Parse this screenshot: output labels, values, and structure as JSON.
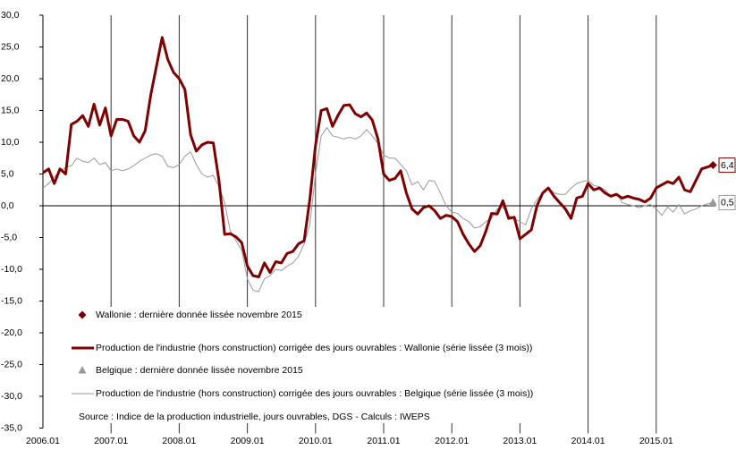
{
  "chart_data": {
    "type": "line",
    "categories": [
      "2006.01",
      null,
      null,
      null,
      null,
      null,
      null,
      null,
      null,
      null,
      null,
      null,
      "2007.01",
      null,
      null,
      null,
      null,
      null,
      null,
      null,
      null,
      null,
      null,
      null,
      "2008.01",
      null,
      null,
      null,
      null,
      null,
      null,
      null,
      null,
      null,
      null,
      null,
      "2009.01",
      null,
      null,
      null,
      null,
      null,
      null,
      null,
      null,
      null,
      null,
      null,
      "2010.01",
      null,
      null,
      null,
      null,
      null,
      null,
      null,
      null,
      null,
      null,
      null,
      "2011.01",
      null,
      null,
      null,
      null,
      null,
      null,
      null,
      null,
      null,
      null,
      null,
      "2012.01",
      null,
      null,
      null,
      null,
      null,
      null,
      null,
      null,
      null,
      null,
      null,
      "2013.01",
      null,
      null,
      null,
      null,
      null,
      null,
      null,
      null,
      null,
      null,
      null,
      "2014.01",
      null,
      null,
      null,
      null,
      null,
      null,
      null,
      null,
      null,
      null,
      null,
      "2015.01",
      null,
      null,
      null,
      null,
      null,
      null,
      null,
      null,
      null,
      null
    ],
    "series": [
      {
        "name": "Wallonie : dernière donnée lissée novembre 2015",
        "color": "#7f0000",
        "marker": "diamond",
        "values": [
          null,
          null,
          null,
          null,
          null,
          null,
          null,
          null,
          null,
          null,
          null,
          null,
          null,
          null,
          null,
          null,
          null,
          null,
          null,
          null,
          null,
          null,
          null,
          null,
          null,
          null,
          null,
          null,
          null,
          null,
          null,
          null,
          null,
          null,
          null,
          null,
          null,
          null,
          null,
          null,
          null,
          null,
          null,
          null,
          null,
          null,
          null,
          null,
          null,
          null,
          null,
          null,
          null,
          null,
          null,
          null,
          null,
          null,
          null,
          null,
          null,
          null,
          null,
          null,
          null,
          null,
          null,
          null,
          null,
          null,
          null,
          null,
          null,
          null,
          null,
          null,
          null,
          null,
          null,
          null,
          null,
          null,
          null,
          null,
          null,
          null,
          null,
          null,
          null,
          null,
          null,
          null,
          null,
          null,
          null,
          null,
          null,
          null,
          null,
          null,
          null,
          null,
          null,
          null,
          null,
          null,
          null,
          null,
          null,
          null,
          null,
          null,
          null,
          null,
          null,
          null,
          null,
          null,
          6.4
        ],
        "value_labels": [
          null,
          null,
          null,
          null,
          null,
          null,
          null,
          null,
          null,
          null,
          null,
          null,
          null,
          null,
          null,
          null,
          null,
          null,
          null,
          null,
          null,
          null,
          null,
          null,
          null,
          null,
          null,
          null,
          null,
          null,
          null,
          null,
          null,
          null,
          null,
          null,
          null,
          null,
          null,
          null,
          null,
          null,
          null,
          null,
          null,
          null,
          null,
          null,
          null,
          null,
          null,
          null,
          null,
          null,
          null,
          null,
          null,
          null,
          null,
          null,
          null,
          null,
          null,
          null,
          null,
          null,
          null,
          null,
          null,
          null,
          null,
          null,
          null,
          null,
          null,
          null,
          null,
          null,
          null,
          null,
          null,
          null,
          null,
          null,
          null,
          null,
          null,
          null,
          null,
          null,
          null,
          null,
          null,
          null,
          null,
          null,
          null,
          null,
          null,
          null,
          null,
          null,
          null,
          null,
          null,
          null,
          null,
          null,
          null,
          null,
          null,
          null,
          null,
          null,
          null,
          null,
          null,
          null,
          "6,4"
        ]
      },
      {
        "name": "Production de l'industrie (hors construction) corrigée des jours ouvrables : Wallonie (série lissée (3 mois))",
        "color": "#7f0000",
        "width": 3,
        "values": [
          5.2,
          5.8,
          3.5,
          5.8,
          5.0,
          12.8,
          13.3,
          14.2,
          12.5,
          16.0,
          12.7,
          15.4,
          11.0,
          13.6,
          13.6,
          13.3,
          11.0,
          10.0,
          11.8,
          17.5,
          22.0,
          26.5,
          23.0,
          21.0,
          20.0,
          18.3,
          11.2,
          8.6,
          9.6,
          10.0,
          9.9,
          4.0,
          -4.5,
          -4.4,
          -4.9,
          -5.8,
          -9.5,
          -11.0,
          -11.2,
          -9.0,
          -10.5,
          -8.8,
          -9.0,
          -7.5,
          -7.2,
          -6.0,
          -5.5,
          1.0,
          9.5,
          15.0,
          15.3,
          12.5,
          14.3,
          15.8,
          15.9,
          14.5,
          14.0,
          14.6,
          13.5,
          10.5,
          5.0,
          4.0,
          4.3,
          5.5,
          2.0,
          -0.5,
          -1.3,
          -0.3,
          0.0,
          -0.8,
          -2.0,
          -1.5,
          -1.7,
          -2.5,
          -4.5,
          -6.0,
          -7.2,
          -6.3,
          -4.0,
          -1.2,
          -1.3,
          0.8,
          -2.0,
          -1.8,
          -5.2,
          -4.5,
          -3.8,
          0.0,
          2.0,
          2.8,
          1.5,
          0.5,
          -0.5,
          -2.0,
          1.2,
          1.5,
          3.5,
          2.5,
          2.8,
          2.0,
          1.5,
          1.8,
          1.2,
          1.5,
          1.2,
          1.0,
          0.6,
          1.2,
          2.8,
          3.3,
          3.8,
          3.5,
          4.5,
          2.5,
          2.2,
          4.0,
          5.8,
          6.1,
          6.4
        ]
      },
      {
        "name": "Belgique : dernière donnée lissée novembre 2015",
        "color": "#999999",
        "marker": "triangle",
        "values": [
          null,
          null,
          null,
          null,
          null,
          null,
          null,
          null,
          null,
          null,
          null,
          null,
          null,
          null,
          null,
          null,
          null,
          null,
          null,
          null,
          null,
          null,
          null,
          null,
          null,
          null,
          null,
          null,
          null,
          null,
          null,
          null,
          null,
          null,
          null,
          null,
          null,
          null,
          null,
          null,
          null,
          null,
          null,
          null,
          null,
          null,
          null,
          null,
          null,
          null,
          null,
          null,
          null,
          null,
          null,
          null,
          null,
          null,
          null,
          null,
          null,
          null,
          null,
          null,
          null,
          null,
          null,
          null,
          null,
          null,
          null,
          null,
          null,
          null,
          null,
          null,
          null,
          null,
          null,
          null,
          null,
          null,
          null,
          null,
          null,
          null,
          null,
          null,
          null,
          null,
          null,
          null,
          null,
          null,
          null,
          null,
          null,
          null,
          null,
          null,
          null,
          null,
          null,
          null,
          null,
          null,
          null,
          null,
          null,
          null,
          null,
          null,
          null,
          null,
          null,
          null,
          null,
          null,
          0.5
        ],
        "value_labels": [
          null,
          null,
          null,
          null,
          null,
          null,
          null,
          null,
          null,
          null,
          null,
          null,
          null,
          null,
          null,
          null,
          null,
          null,
          null,
          null,
          null,
          null,
          null,
          null,
          null,
          null,
          null,
          null,
          null,
          null,
          null,
          null,
          null,
          null,
          null,
          null,
          null,
          null,
          null,
          null,
          null,
          null,
          null,
          null,
          null,
          null,
          null,
          null,
          null,
          null,
          null,
          null,
          null,
          null,
          null,
          null,
          null,
          null,
          null,
          null,
          null,
          null,
          null,
          null,
          null,
          null,
          null,
          null,
          null,
          null,
          null,
          null,
          null,
          null,
          null,
          null,
          null,
          null,
          null,
          null,
          null,
          null,
          null,
          null,
          null,
          null,
          null,
          null,
          null,
          null,
          null,
          null,
          null,
          null,
          null,
          null,
          null,
          null,
          null,
          null,
          null,
          null,
          null,
          null,
          null,
          null,
          null,
          null,
          null,
          null,
          null,
          null,
          null,
          null,
          null,
          null,
          null,
          null,
          "0,5"
        ]
      },
      {
        "name": "Production de l'industrie (hors construction) corrigée des jours ouvrables : Belgique (série lissée (3 mois))",
        "color": "#999999",
        "width": 1,
        "values": [
          2.8,
          3.5,
          4.5,
          5.5,
          6.0,
          6.3,
          7.5,
          7.0,
          6.8,
          7.5,
          6.5,
          6.8,
          5.5,
          5.8,
          5.5,
          5.8,
          6.3,
          7.0,
          7.5,
          8.0,
          8.2,
          7.8,
          6.2,
          6.0,
          6.5,
          7.8,
          8.5,
          6.5,
          5.0,
          4.5,
          4.8,
          3.0,
          0.5,
          -4.0,
          -5.5,
          -7.0,
          -11.5,
          -13.3,
          -13.5,
          -11.5,
          -11.0,
          -10.0,
          -10.2,
          -9.5,
          -9.0,
          -8.0,
          -6.0,
          -3.0,
          5.0,
          11.0,
          12.3,
          11.0,
          10.8,
          10.5,
          10.8,
          10.5,
          11.0,
          12.0,
          11.0,
          9.8,
          8.0,
          7.5,
          7.5,
          6.5,
          5.5,
          3.3,
          3.8,
          2.5,
          4.0,
          3.8,
          2.0,
          0.0,
          -1.0,
          -1.2,
          -2.0,
          -2.5,
          -3.5,
          -3.3,
          -2.5,
          -2.0,
          -0.5,
          -0.2,
          -1.5,
          -2.0,
          -2.5,
          -3.0,
          -0.5,
          1.0,
          2.0,
          2.8,
          2.0,
          1.8,
          1.8,
          2.8,
          3.5,
          3.8,
          4.0,
          3.2,
          3.0,
          2.5,
          1.5,
          2.0,
          0.5,
          0.2,
          0.0,
          -0.3,
          0.0,
          0.2,
          -0.5,
          -1.5,
          -0.2,
          -1.0,
          0.2,
          -1.3,
          -0.8,
          -0.5,
          0.0,
          0.3,
          0.5
        ]
      }
    ],
    "ylim": [
      -35,
      30
    ],
    "yticks": [
      {
        "value": 30,
        "label": "30,0"
      },
      {
        "value": 25,
        "label": "25,0"
      },
      {
        "value": 20,
        "label": "20,0"
      },
      {
        "value": 15,
        "label": "15,0"
      },
      {
        "value": 10,
        "label": "10,0"
      },
      {
        "value": 5,
        "label": "5,0"
      },
      {
        "value": 0,
        "label": "0,0"
      },
      {
        "value": -5,
        "label": "-5,0"
      },
      {
        "value": -10,
        "label": "-10,0"
      },
      {
        "value": -15,
        "label": "-15,0"
      },
      {
        "value": -20,
        "label": "-20,0"
      },
      {
        "value": -25,
        "label": "-25,0"
      },
      {
        "value": -30,
        "label": "-30,0"
      },
      {
        "value": -35,
        "label": "-35,0"
      }
    ],
    "grid": "x",
    "legend": "lower left",
    "note": "Source : Indice de la production industrielle, jours ouvrables, DGS - Calculs : IWEPS"
  }
}
